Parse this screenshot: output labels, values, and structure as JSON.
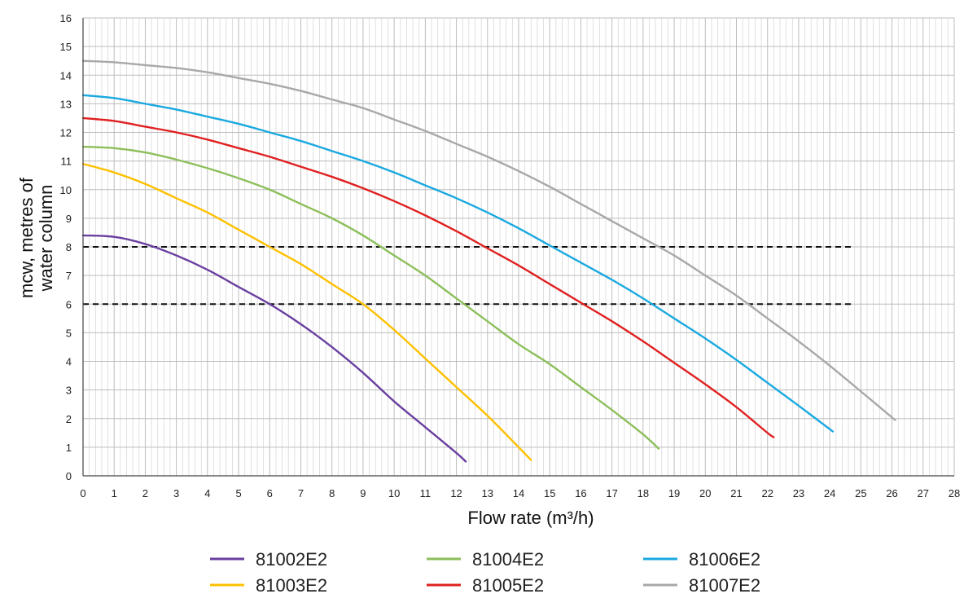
{
  "chart_data": {
    "type": "line",
    "title": "",
    "xlabel": "Flow rate (m³/h)",
    "ylabel": "mcw, metres of water column",
    "ylabel_lines": [
      "mcw, metres of",
      "water column"
    ],
    "xlim": [
      0,
      28
    ],
    "ylim": [
      0,
      16
    ],
    "x_ticks": [
      0,
      1,
      2,
      3,
      4,
      5,
      6,
      7,
      8,
      9,
      10,
      11,
      12,
      13,
      14,
      15,
      16,
      17,
      18,
      19,
      20,
      21,
      22,
      23,
      24,
      25,
      26,
      27,
      28
    ],
    "y_ticks": [
      0,
      1,
      2,
      3,
      4,
      5,
      6,
      7,
      8,
      9,
      10,
      11,
      12,
      13,
      14,
      15,
      16
    ],
    "grid": true,
    "legend_position": "bottom",
    "reference_lines": [
      {
        "y": 8,
        "x_end": 24.8,
        "style": "dashed",
        "color": "#111111"
      },
      {
        "y": 6,
        "x_end": 24.8,
        "style": "dashed",
        "color": "#111111"
      }
    ],
    "series": [
      {
        "name": "81002E2",
        "color": "#6a3fa0",
        "points": [
          [
            0.0,
            8.4
          ],
          [
            1,
            8.35
          ],
          [
            2,
            8.1
          ],
          [
            3,
            7.7
          ],
          [
            4,
            7.2
          ],
          [
            5,
            6.6
          ],
          [
            6,
            6.0
          ],
          [
            7,
            5.3
          ],
          [
            8,
            4.5
          ],
          [
            9,
            3.6
          ],
          [
            10,
            2.6
          ],
          [
            11,
            1.7
          ],
          [
            12,
            0.8
          ],
          [
            12.3,
            0.5
          ]
        ]
      },
      {
        "name": "81003E2",
        "color": "#ffc000",
        "points": [
          [
            0.0,
            10.9
          ],
          [
            1,
            10.6
          ],
          [
            2,
            10.2
          ],
          [
            3,
            9.7
          ],
          [
            4,
            9.2
          ],
          [
            5,
            8.6
          ],
          [
            6,
            8.0
          ],
          [
            7,
            7.4
          ],
          [
            8,
            6.7
          ],
          [
            9,
            6.0
          ],
          [
            10,
            5.1
          ],
          [
            11,
            4.1
          ],
          [
            12,
            3.1
          ],
          [
            13,
            2.1
          ],
          [
            14,
            1.0
          ],
          [
            14.4,
            0.55
          ]
        ]
      },
      {
        "name": "81004E2",
        "color": "#8dbf5b",
        "points": [
          [
            0.0,
            11.5
          ],
          [
            1,
            11.45
          ],
          [
            2,
            11.3
          ],
          [
            3,
            11.05
          ],
          [
            4,
            10.75
          ],
          [
            5,
            10.4
          ],
          [
            6,
            10.0
          ],
          [
            7,
            9.5
          ],
          [
            8,
            9.0
          ],
          [
            9,
            8.4
          ],
          [
            10,
            7.7
          ],
          [
            11,
            7.0
          ],
          [
            12,
            6.2
          ],
          [
            13,
            5.4
          ],
          [
            14,
            4.6
          ],
          [
            15,
            3.9
          ],
          [
            16,
            3.1
          ],
          [
            17,
            2.3
          ],
          [
            18,
            1.45
          ],
          [
            18.5,
            0.95
          ]
        ]
      },
      {
        "name": "81005E2",
        "color": "#e02020",
        "points": [
          [
            0.0,
            12.5
          ],
          [
            1,
            12.4
          ],
          [
            2,
            12.2
          ],
          [
            3,
            12.0
          ],
          [
            4,
            11.75
          ],
          [
            5,
            11.45
          ],
          [
            6,
            11.15
          ],
          [
            7,
            10.8
          ],
          [
            8,
            10.45
          ],
          [
            9,
            10.05
          ],
          [
            10,
            9.6
          ],
          [
            11,
            9.1
          ],
          [
            12,
            8.55
          ],
          [
            13,
            7.95
          ],
          [
            14,
            7.35
          ],
          [
            15,
            6.7
          ],
          [
            16,
            6.05
          ],
          [
            17,
            5.4
          ],
          [
            18,
            4.7
          ],
          [
            19,
            3.95
          ],
          [
            20,
            3.2
          ],
          [
            21,
            2.4
          ],
          [
            22,
            1.5
          ],
          [
            22.2,
            1.35
          ]
        ]
      },
      {
        "name": "81006E2",
        "color": "#1aa9e0",
        "points": [
          [
            0.0,
            13.3
          ],
          [
            1,
            13.2
          ],
          [
            2,
            13.0
          ],
          [
            3,
            12.8
          ],
          [
            4,
            12.55
          ],
          [
            5,
            12.3
          ],
          [
            6,
            12.0
          ],
          [
            7,
            11.7
          ],
          [
            8,
            11.35
          ],
          [
            9,
            11.0
          ],
          [
            10,
            10.6
          ],
          [
            11,
            10.15
          ],
          [
            12,
            9.7
          ],
          [
            13,
            9.2
          ],
          [
            14,
            8.65
          ],
          [
            15,
            8.05
          ],
          [
            16,
            7.45
          ],
          [
            17,
            6.85
          ],
          [
            18,
            6.2
          ],
          [
            19,
            5.5
          ],
          [
            20,
            4.8
          ],
          [
            21,
            4.05
          ],
          [
            22,
            3.25
          ],
          [
            23,
            2.45
          ],
          [
            24.1,
            1.55
          ]
        ]
      },
      {
        "name": "81007E2",
        "color": "#a8a8a8",
        "points": [
          [
            0.0,
            14.5
          ],
          [
            1,
            14.45
          ],
          [
            2,
            14.35
          ],
          [
            3,
            14.25
          ],
          [
            4,
            14.1
          ],
          [
            5,
            13.9
          ],
          [
            6,
            13.7
          ],
          [
            7,
            13.45
          ],
          [
            8,
            13.15
          ],
          [
            9,
            12.85
          ],
          [
            10,
            12.45
          ],
          [
            11,
            12.05
          ],
          [
            12,
            11.6
          ],
          [
            13,
            11.15
          ],
          [
            14,
            10.65
          ],
          [
            15,
            10.1
          ],
          [
            16,
            9.5
          ],
          [
            17,
            8.9
          ],
          [
            18,
            8.3
          ],
          [
            19,
            7.7
          ],
          [
            20,
            7.0
          ],
          [
            21,
            6.3
          ],
          [
            22,
            5.5
          ],
          [
            23,
            4.7
          ],
          [
            24,
            3.85
          ],
          [
            25,
            2.95
          ],
          [
            26.1,
            1.95
          ]
        ]
      }
    ]
  }
}
